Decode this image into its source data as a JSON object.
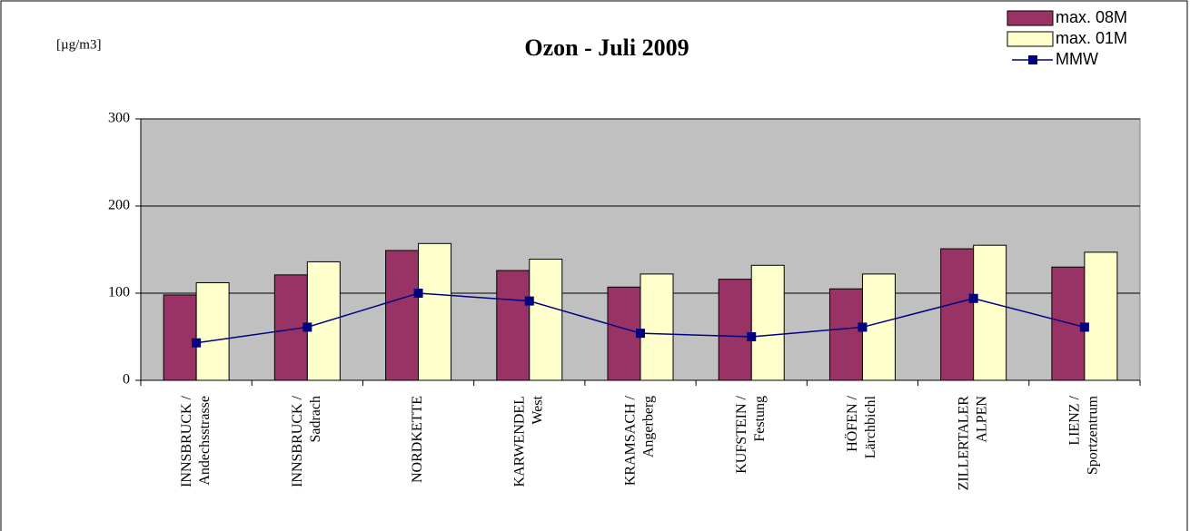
{
  "chart_data": {
    "type": "bar",
    "title": "Ozon - Juli 2009",
    "unit_label": "[µg/m3]",
    "categories": [
      [
        "INNSBRUCK /",
        "Andechsstrasse"
      ],
      [
        "INNSBRUCK /",
        "Sadrach"
      ],
      [
        "NORDKETTE"
      ],
      [
        "KARWENDEL",
        "West"
      ],
      [
        "KRAMSACH /",
        "Angerberg"
      ],
      [
        "KUFSTEIN /",
        "Festung"
      ],
      [
        "HÖFEN /",
        "Lärchbichl"
      ],
      [
        "ZILLERTALER",
        "ALPEN"
      ],
      [
        "LIENZ /",
        "Sportzentrum"
      ]
    ],
    "series": [
      {
        "name": "max. 08M",
        "color": "#993366",
        "type": "bar",
        "values": [
          98,
          121,
          149,
          126,
          107,
          116,
          105,
          151,
          130
        ]
      },
      {
        "name": "max. 01M",
        "color": "#ffffcc",
        "type": "bar",
        "values": [
          112,
          136,
          157,
          139,
          122,
          132,
          122,
          155,
          147
        ]
      },
      {
        "name": "MMW",
        "color": "#000080",
        "type": "line",
        "values": [
          43,
          61,
          100,
          91,
          54,
          50,
          61,
          94,
          61
        ]
      }
    ],
    "ylim": [
      0,
      300
    ],
    "yticks": [
      0,
      100,
      200,
      300
    ],
    "grid": true,
    "legend": "top-right"
  }
}
